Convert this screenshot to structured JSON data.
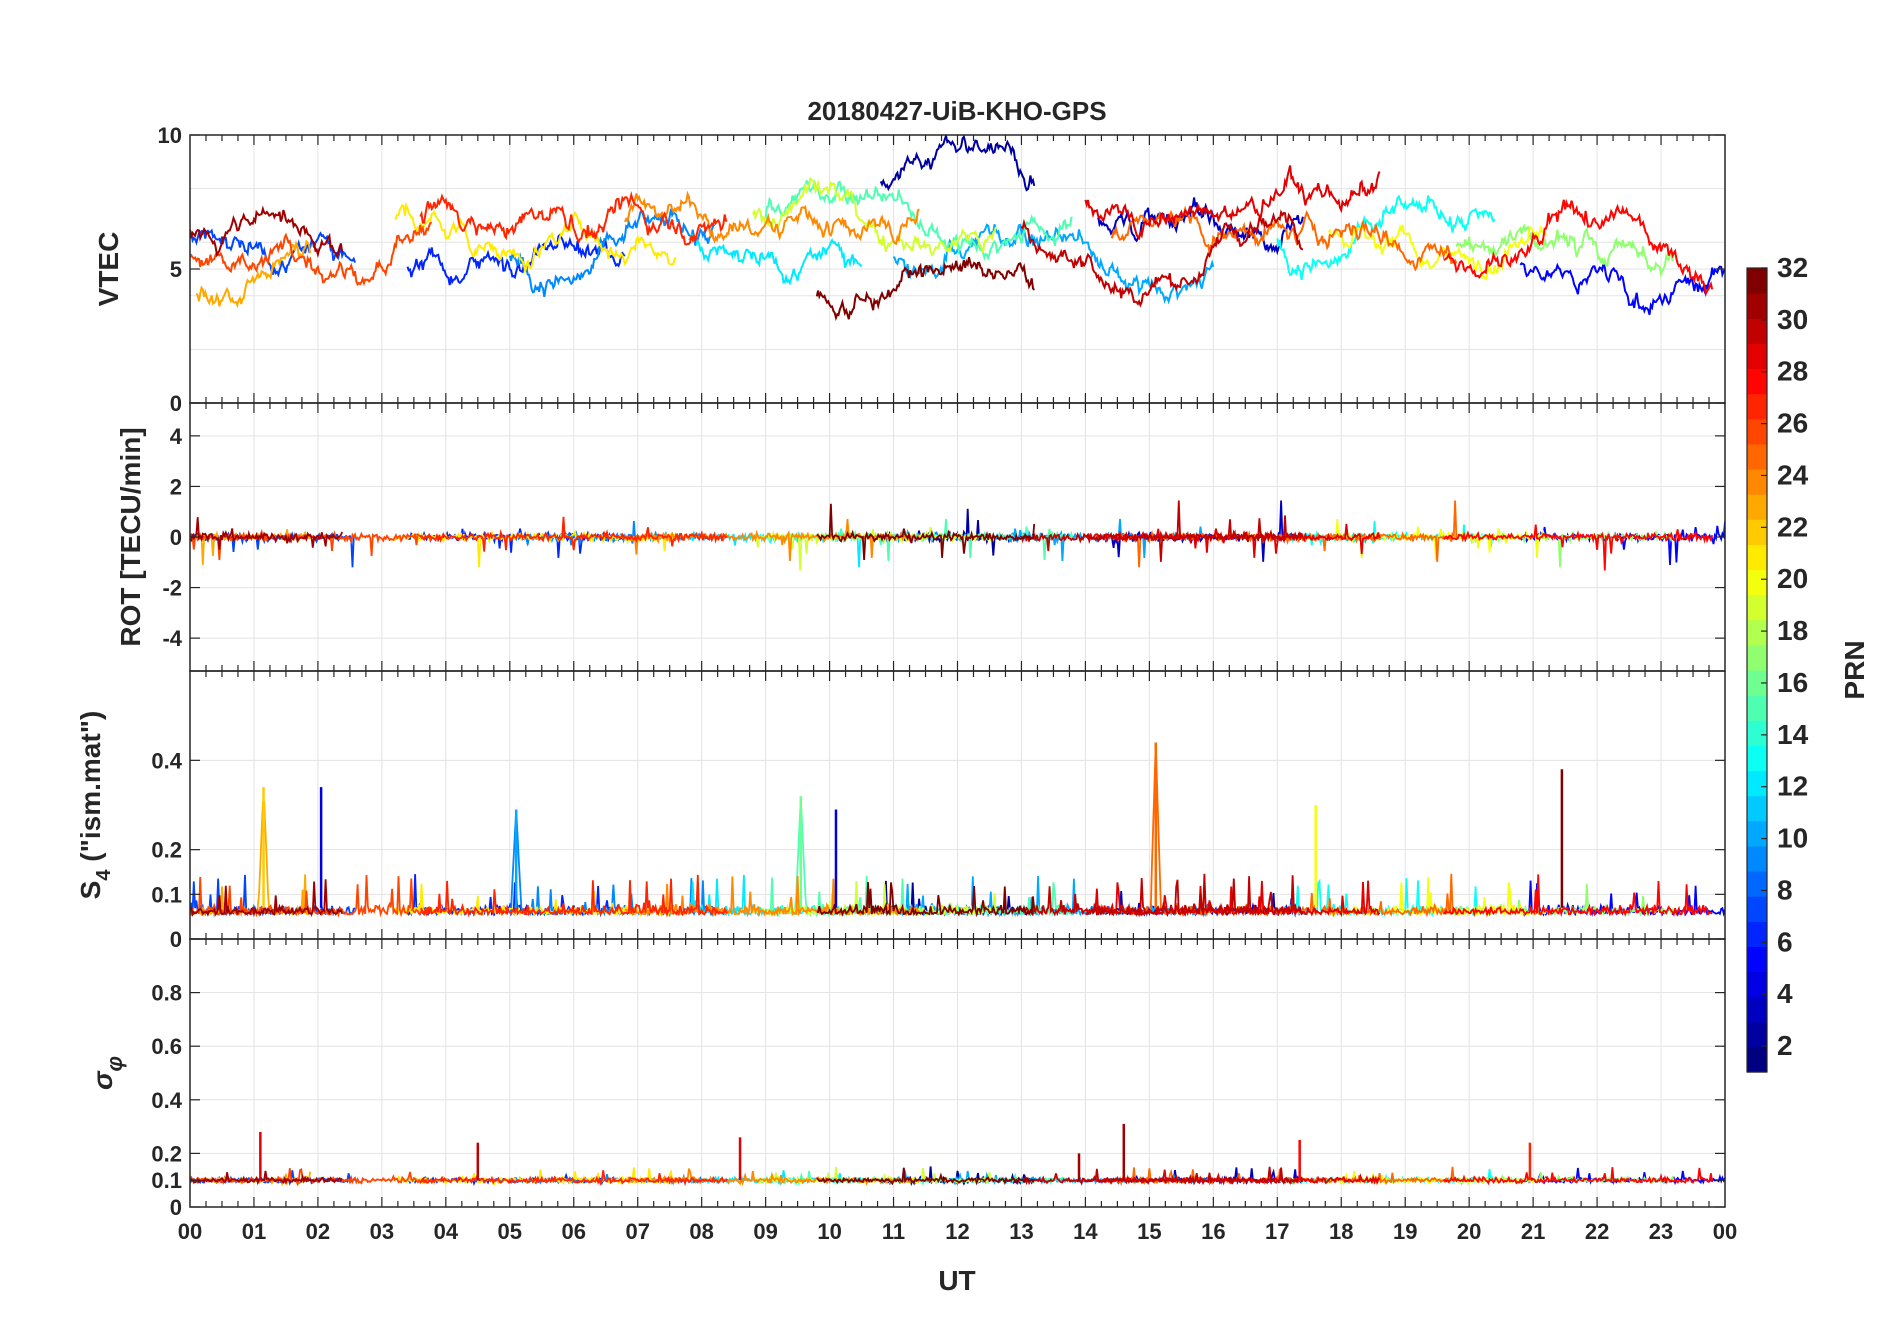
{
  "chart_data": {
    "type": "line",
    "title": "20180427-UiB-KHO-GPS",
    "xlabel": "UT",
    "x_tick_labels": [
      "00",
      "01",
      "02",
      "03",
      "04",
      "05",
      "06",
      "07",
      "08",
      "09",
      "10",
      "11",
      "12",
      "13",
      "14",
      "15",
      "16",
      "17",
      "18",
      "19",
      "20",
      "21",
      "22",
      "23",
      "00"
    ],
    "xlim": [
      0,
      24
    ],
    "grid": true,
    "colorbar": {
      "label": "PRN",
      "colormap": "jet",
      "range": [
        1,
        32
      ],
      "tick_labels": [
        "2",
        "4",
        "6",
        "8",
        "10",
        "12",
        "14",
        "16",
        "18",
        "20",
        "22",
        "24",
        "26",
        "28",
        "30",
        "32"
      ],
      "placement": "right"
    },
    "panels": [
      {
        "name": "vtec",
        "ylabel": "VTEC",
        "ylim": [
          0,
          10
        ],
        "y_tick_labels": [
          "0",
          "5",
          "10"
        ],
        "baseline": 6.0,
        "typical_range": [
          4,
          9
        ]
      },
      {
        "name": "rot",
        "ylabel": "ROT [TECU/min]",
        "ylim": [
          -5.3,
          5.3
        ],
        "y_tick_labels": [
          "-4",
          "-2",
          "0",
          "2",
          "4"
        ],
        "baseline": 0.0,
        "typical_range": [
          -2,
          2.5
        ]
      },
      {
        "name": "s4",
        "ylabel_main": "S",
        "ylabel_sub": "4",
        "ylabel_rest": " (\"ism.mat\")",
        "ylim": [
          0,
          0.6
        ],
        "y_tick_labels": [
          "0",
          "0.1",
          "0.2",
          "0.4"
        ],
        "baseline": 0.07,
        "peaks": [
          {
            "t": 1.15,
            "v": 0.34,
            "prn": 22
          },
          {
            "t": 2.05,
            "v": 0.34,
            "prn": 4
          },
          {
            "t": 5.1,
            "v": 0.29,
            "prn": 10
          },
          {
            "t": 9.55,
            "v": 0.32,
            "prn": 16
          },
          {
            "t": 10.1,
            "v": 0.29,
            "prn": 4
          },
          {
            "t": 15.1,
            "v": 0.44,
            "prn": 25
          },
          {
            "t": 17.6,
            "v": 0.3,
            "prn": 20
          },
          {
            "t": 21.45,
            "v": 0.38,
            "prn": 32
          }
        ]
      },
      {
        "name": "sigma_phi",
        "ylabel": "σ",
        "ylabel_sub": "φ",
        "ylim": [
          0,
          1
        ],
        "y_tick_labels": [
          "0",
          "0.1",
          "0.2",
          "0.4",
          "0.6",
          "0.8"
        ],
        "baseline": 0.1,
        "peaks": [
          {
            "t": 1.1,
            "v": 0.28,
            "prn": 29
          },
          {
            "t": 4.5,
            "v": 0.24,
            "prn": 30
          },
          {
            "t": 8.6,
            "v": 0.26,
            "prn": 29
          },
          {
            "t": 13.9,
            "v": 0.2,
            "prn": 31
          },
          {
            "t": 14.6,
            "v": 0.31,
            "prn": 31
          },
          {
            "t": 17.35,
            "v": 0.25,
            "prn": 28
          },
          {
            "t": 20.95,
            "v": 0.24,
            "prn": 27
          }
        ]
      }
    ],
    "series": [
      {
        "name": "PRN 2",
        "prn": 2,
        "start": 10.8,
        "end": 13.2,
        "vtec": 8.2
      },
      {
        "name": "PRN 3",
        "prn": 3,
        "start": 14.2,
        "end": 17.4,
        "vtec": 6.8
      },
      {
        "name": "PRN 5",
        "prn": 5,
        "start": 20.8,
        "end": 24.0,
        "vtec": 5.0
      },
      {
        "name": "PRN 6",
        "prn": 6,
        "start": 3.4,
        "end": 6.8,
        "vtec": 5.4
      },
      {
        "name": "PRN 7",
        "prn": 7,
        "start": 0.0,
        "end": 2.6,
        "vtec": 6.2
      },
      {
        "name": "PRN 9",
        "prn": 9,
        "start": 5.0,
        "end": 8.2,
        "vtec": 5.9
      },
      {
        "name": "PRN 10",
        "prn": 10,
        "start": 11.0,
        "end": 16.0,
        "vtec": 5.6
      },
      {
        "name": "PRN 12",
        "prn": 12,
        "start": 7.8,
        "end": 10.5,
        "vtec": 6.0
      },
      {
        "name": "PRN 13",
        "prn": 13,
        "start": 17.0,
        "end": 20.4,
        "vtec": 6.4
      },
      {
        "name": "PRN 15",
        "prn": 15,
        "start": 9.0,
        "end": 13.8,
        "vtec": 7.2
      },
      {
        "name": "PRN 17",
        "prn": 17,
        "start": 19.8,
        "end": 23.2,
        "vtec": 5.6
      },
      {
        "name": "PRN 19",
        "prn": 19,
        "start": 8.8,
        "end": 12.6,
        "vtec": 7.1
      },
      {
        "name": "PRN 20",
        "prn": 20,
        "start": 17.8,
        "end": 21.2,
        "vtec": 6.2
      },
      {
        "name": "PRN 21",
        "prn": 21,
        "start": 3.2,
        "end": 7.6,
        "vtec": 6.6
      },
      {
        "name": "PRN 23",
        "prn": 23,
        "start": 0.1,
        "end": 1.9,
        "vtec": 4.6
      },
      {
        "name": "PRN 24",
        "prn": 24,
        "start": 6.8,
        "end": 11.4,
        "vtec": 6.9
      },
      {
        "name": "PRN 25",
        "prn": 25,
        "start": 14.4,
        "end": 19.8,
        "vtec": 6.0
      },
      {
        "name": "PRN 26",
        "prn": 26,
        "start": 0.0,
        "end": 3.8,
        "vtec": 5.9
      },
      {
        "name": "PRN 27",
        "prn": 27,
        "start": 3.6,
        "end": 8.4,
        "vtec": 7.2
      },
      {
        "name": "PRN 28",
        "prn": 28,
        "start": 19.6,
        "end": 23.8,
        "vtec": 5.3
      },
      {
        "name": "PRN 29",
        "prn": 29,
        "start": 14.0,
        "end": 18.6,
        "vtec": 7.1
      },
      {
        "name": "PRN 30",
        "prn": 30,
        "start": 13.0,
        "end": 17.4,
        "vtec": 6.3
      },
      {
        "name": "PRN 31",
        "prn": 31,
        "start": 0.0,
        "end": 2.4,
        "vtec": 6.2
      },
      {
        "name": "PRN 32",
        "prn": 32,
        "start": 9.8,
        "end": 13.2,
        "vtec": 4.4
      }
    ]
  }
}
